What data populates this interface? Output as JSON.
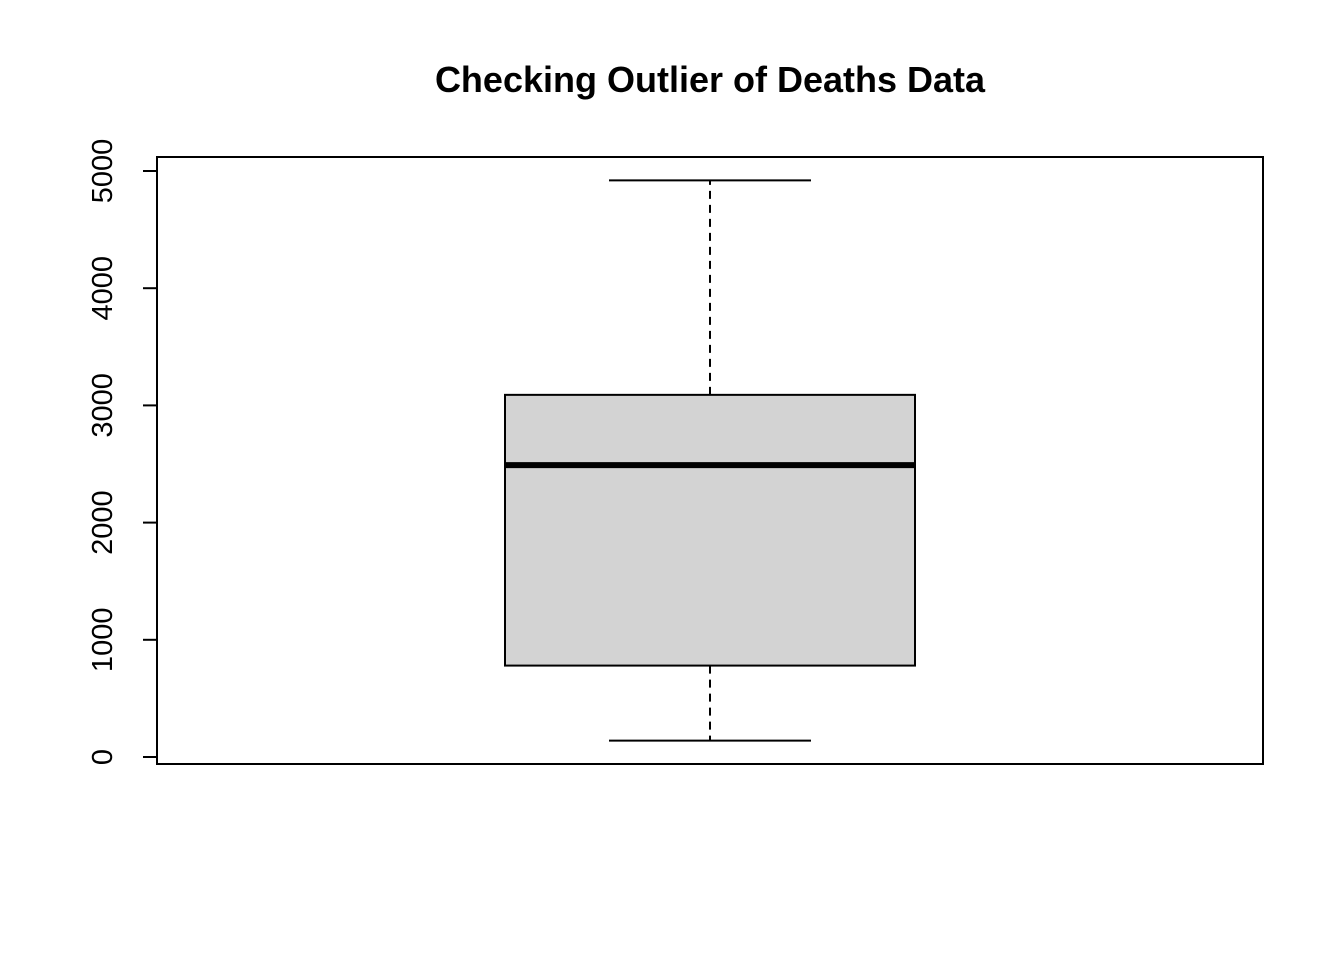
{
  "chart_data": {
    "type": "boxplot",
    "title": "Checking Outlier of Deaths Data",
    "xlabel": "",
    "ylabel": "",
    "ylim": [
      0,
      5000
    ],
    "y_ticks": [
      0,
      1000,
      2000,
      3000,
      4000,
      5000
    ],
    "y_tick_labels": [
      "0",
      "1000",
      "2000",
      "3000",
      "4000",
      "5000"
    ],
    "grid": false,
    "box": {
      "min": 140,
      "q1": 780,
      "median": 2490,
      "q3": 3090,
      "max": 4920,
      "outliers": []
    },
    "colors": {
      "box_fill": "#d3d3d3",
      "stroke": "#000000"
    }
  }
}
